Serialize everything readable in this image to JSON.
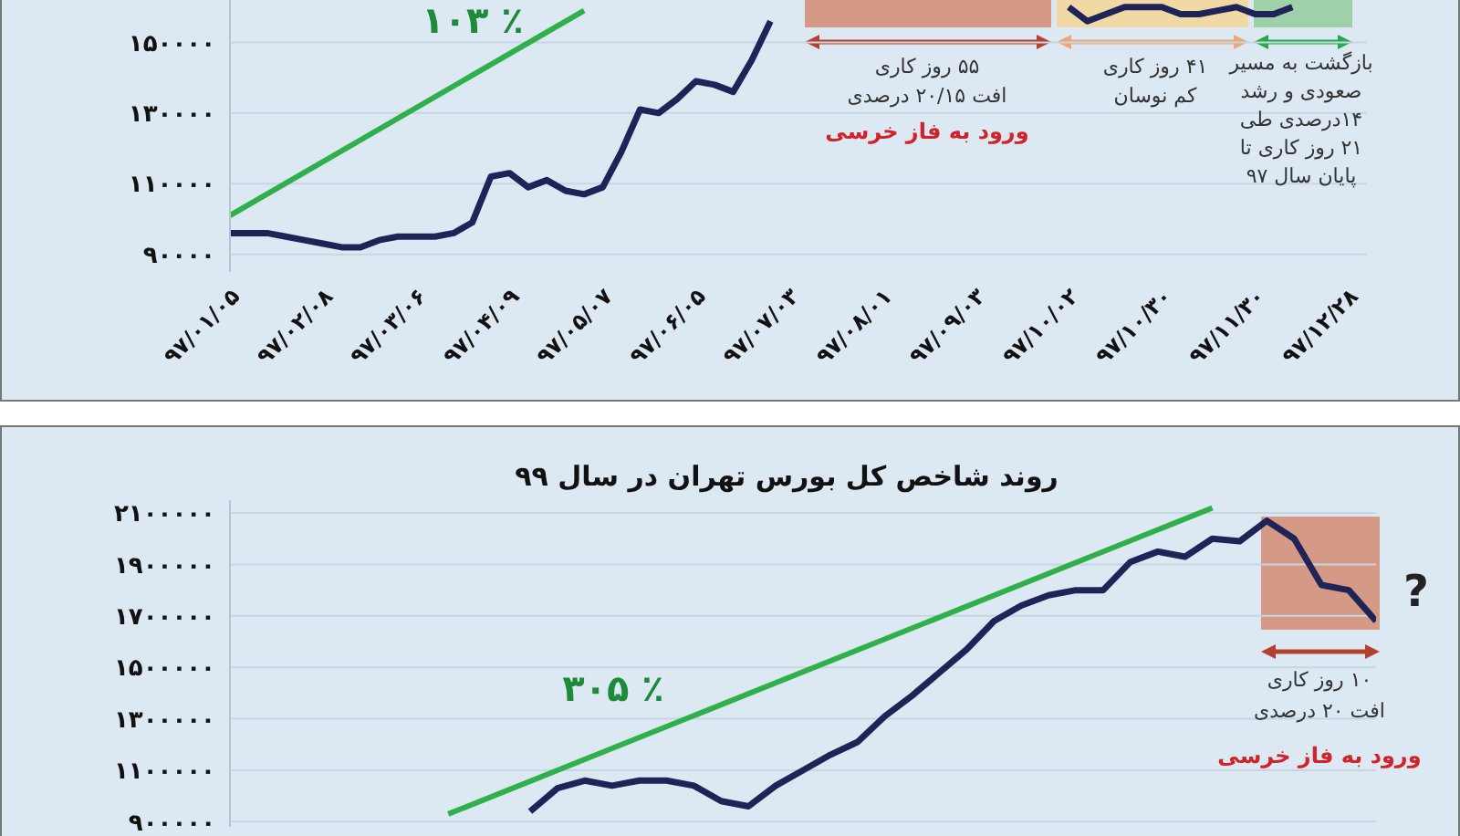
{
  "chart_data": [
    {
      "type": "line",
      "categories": [
        "۹۷/۰۱/۰۵",
        null,
        null,
        null,
        null,
        "۹۷/۰۲/۰۸",
        null,
        null,
        null,
        null,
        "۹۷/۰۳/۰۶",
        null,
        null,
        null,
        null,
        "۹۷/۰۴/۰۹",
        null,
        null,
        null,
        null,
        "۹۷/۰۵/۰۷",
        null,
        null,
        null,
        null,
        "۹۷/۰۶/۰۵",
        null,
        null,
        null,
        null,
        "۹۷/۰۷/۰۳",
        null,
        null,
        null,
        null,
        "۹۷/۰۸/۰۱",
        null,
        null,
        null,
        null,
        "۹۷/۰۹/۰۳",
        null,
        null,
        null,
        null,
        "۹۷/۱۰/۰۲",
        null,
        null,
        null,
        null,
        "۹۷/۱۰/۳۰",
        null,
        null,
        null,
        null,
        "۹۷/۱۱/۳۰",
        null,
        null,
        null,
        null,
        "۹۷/۱۲/۲۸",
        null
      ],
      "ylim": [
        85000,
        162000
      ],
      "yticks": [
        {
          "value": 90000,
          "label": "۹۰۰۰۰"
        },
        {
          "value": 110000,
          "label": "۱۱۰۰۰۰"
        },
        {
          "value": 130000,
          "label": "۱۳۰۰۰۰"
        },
        {
          "value": 150000,
          "label": "۱۵۰۰۰۰"
        }
      ],
      "grid": "y",
      "marker": "none",
      "series": [
        {
          "color": "#1f2458",
          "values": [
            96000,
            96000,
            96000,
            95000,
            94000,
            93000,
            92000,
            92000,
            94000,
            95000,
            95000,
            95000,
            96000,
            99000,
            112000,
            113000,
            109000,
            111000,
            108000,
            107000,
            109000,
            119000,
            131000,
            130000,
            134000,
            139000,
            138000,
            136000,
            145000,
            156000,
            null,
            null,
            null,
            null,
            null,
            null,
            null,
            null,
            null,
            null,
            null,
            null,
            null,
            null,
            null,
            160000,
            156000,
            158000,
            160000,
            160000,
            160000,
            158000,
            158000,
            159000,
            160000,
            158000,
            158000,
            160000,
            null,
            null,
            null,
            null
          ]
        },
        {
          "type": "line",
          "color": "#2fb04a",
          "values": [
            101000,
            null,
            null,
            null,
            null,
            null,
            null,
            null,
            null,
            null,
            null,
            null,
            null,
            null,
            null,
            null,
            null,
            null,
            null,
            159000,
            null,
            null,
            null,
            null,
            null,
            null,
            null,
            null,
            null,
            null,
            null,
            null,
            null,
            null,
            null,
            null,
            null,
            null,
            null,
            null,
            null,
            null,
            null,
            null,
            null,
            null,
            null,
            null,
            null,
            null,
            null,
            null,
            null,
            null,
            null,
            null,
            null,
            null,
            null,
            null,
            null,
            null
          ]
        }
      ],
      "annotations": [
        "٪ ۱۰۳",
        "۵۵ روز کاری\nافت ۲۰/۱۵ درصدی",
        "ورود به فاز خرسی",
        "۴۱ روز کاری\nکم نوسان",
        "بازگشت به مسیر\nصعودی و رشد\n۱۴درصدی طی\n۲۱ روز کاری تا\nپایان سال ۹۷"
      ]
    },
    {
      "type": "line",
      "title": "روند شاخص کل بورس تهران در سال ۹۹",
      "categories": [
        null,
        null,
        null,
        null,
        null,
        null,
        null,
        null,
        null,
        null,
        null,
        null,
        null,
        null,
        null,
        null,
        null,
        null,
        null,
        null,
        null,
        null,
        null,
        null,
        null,
        null,
        null,
        null,
        null,
        null,
        null,
        null,
        null,
        null,
        null,
        null,
        null,
        null,
        null,
        null,
        null,
        null,
        null
      ],
      "ylim": [
        880000,
        2150000
      ],
      "yticks": [
        {
          "value": 900000,
          "label": "۹۰۰۰۰۰"
        },
        {
          "value": 1100000,
          "label": "۱۱۰۰۰۰۰"
        },
        {
          "value": 1300000,
          "label": "۱۳۰۰۰۰۰"
        },
        {
          "value": 1500000,
          "label": "۱۵۰۰۰۰۰"
        },
        {
          "value": 1700000,
          "label": "۱۷۰۰۰۰۰"
        },
        {
          "value": 1900000,
          "label": "۱۹۰۰۰۰۰"
        },
        {
          "value": 2100000,
          "label": "۲۱۰۰۰۰۰"
        }
      ],
      "tick_labels": "y",
      "grid": "y",
      "marker": "none",
      "series": [
        {
          "color": "#1f2458",
          "values": [
            null,
            null,
            null,
            null,
            null,
            null,
            null,
            null,
            null,
            null,
            null,
            940000,
            1030000,
            1060000,
            1040000,
            1060000,
            1060000,
            1040000,
            980000,
            960000,
            1040000,
            1100000,
            1160000,
            1210000,
            1310000,
            1390000,
            1480000,
            1570000,
            1680000,
            1740000,
            1780000,
            1800000,
            1800000,
            1910000,
            1950000,
            1930000,
            2000000,
            1990000,
            2070000,
            2000000,
            1820000,
            1800000,
            1680000
          ]
        },
        {
          "type": "line",
          "color": "#2fb04a",
          "values": [
            null,
            null,
            null,
            null,
            null,
            null,
            null,
            null,
            930000,
            null,
            null,
            null,
            null,
            null,
            null,
            null,
            null,
            null,
            null,
            null,
            null,
            null,
            null,
            null,
            null,
            null,
            null,
            null,
            null,
            null,
            null,
            null,
            null,
            null,
            null,
            null,
            2120000,
            null,
            null,
            null,
            null,
            null,
            null
          ]
        }
      ],
      "annotations": [
        "٪ ۳۰۵",
        "۱۰ روز کاری\nافت ۲۰ درصدی",
        "ورود به فاز خرسی",
        "?"
      ]
    }
  ]
}
